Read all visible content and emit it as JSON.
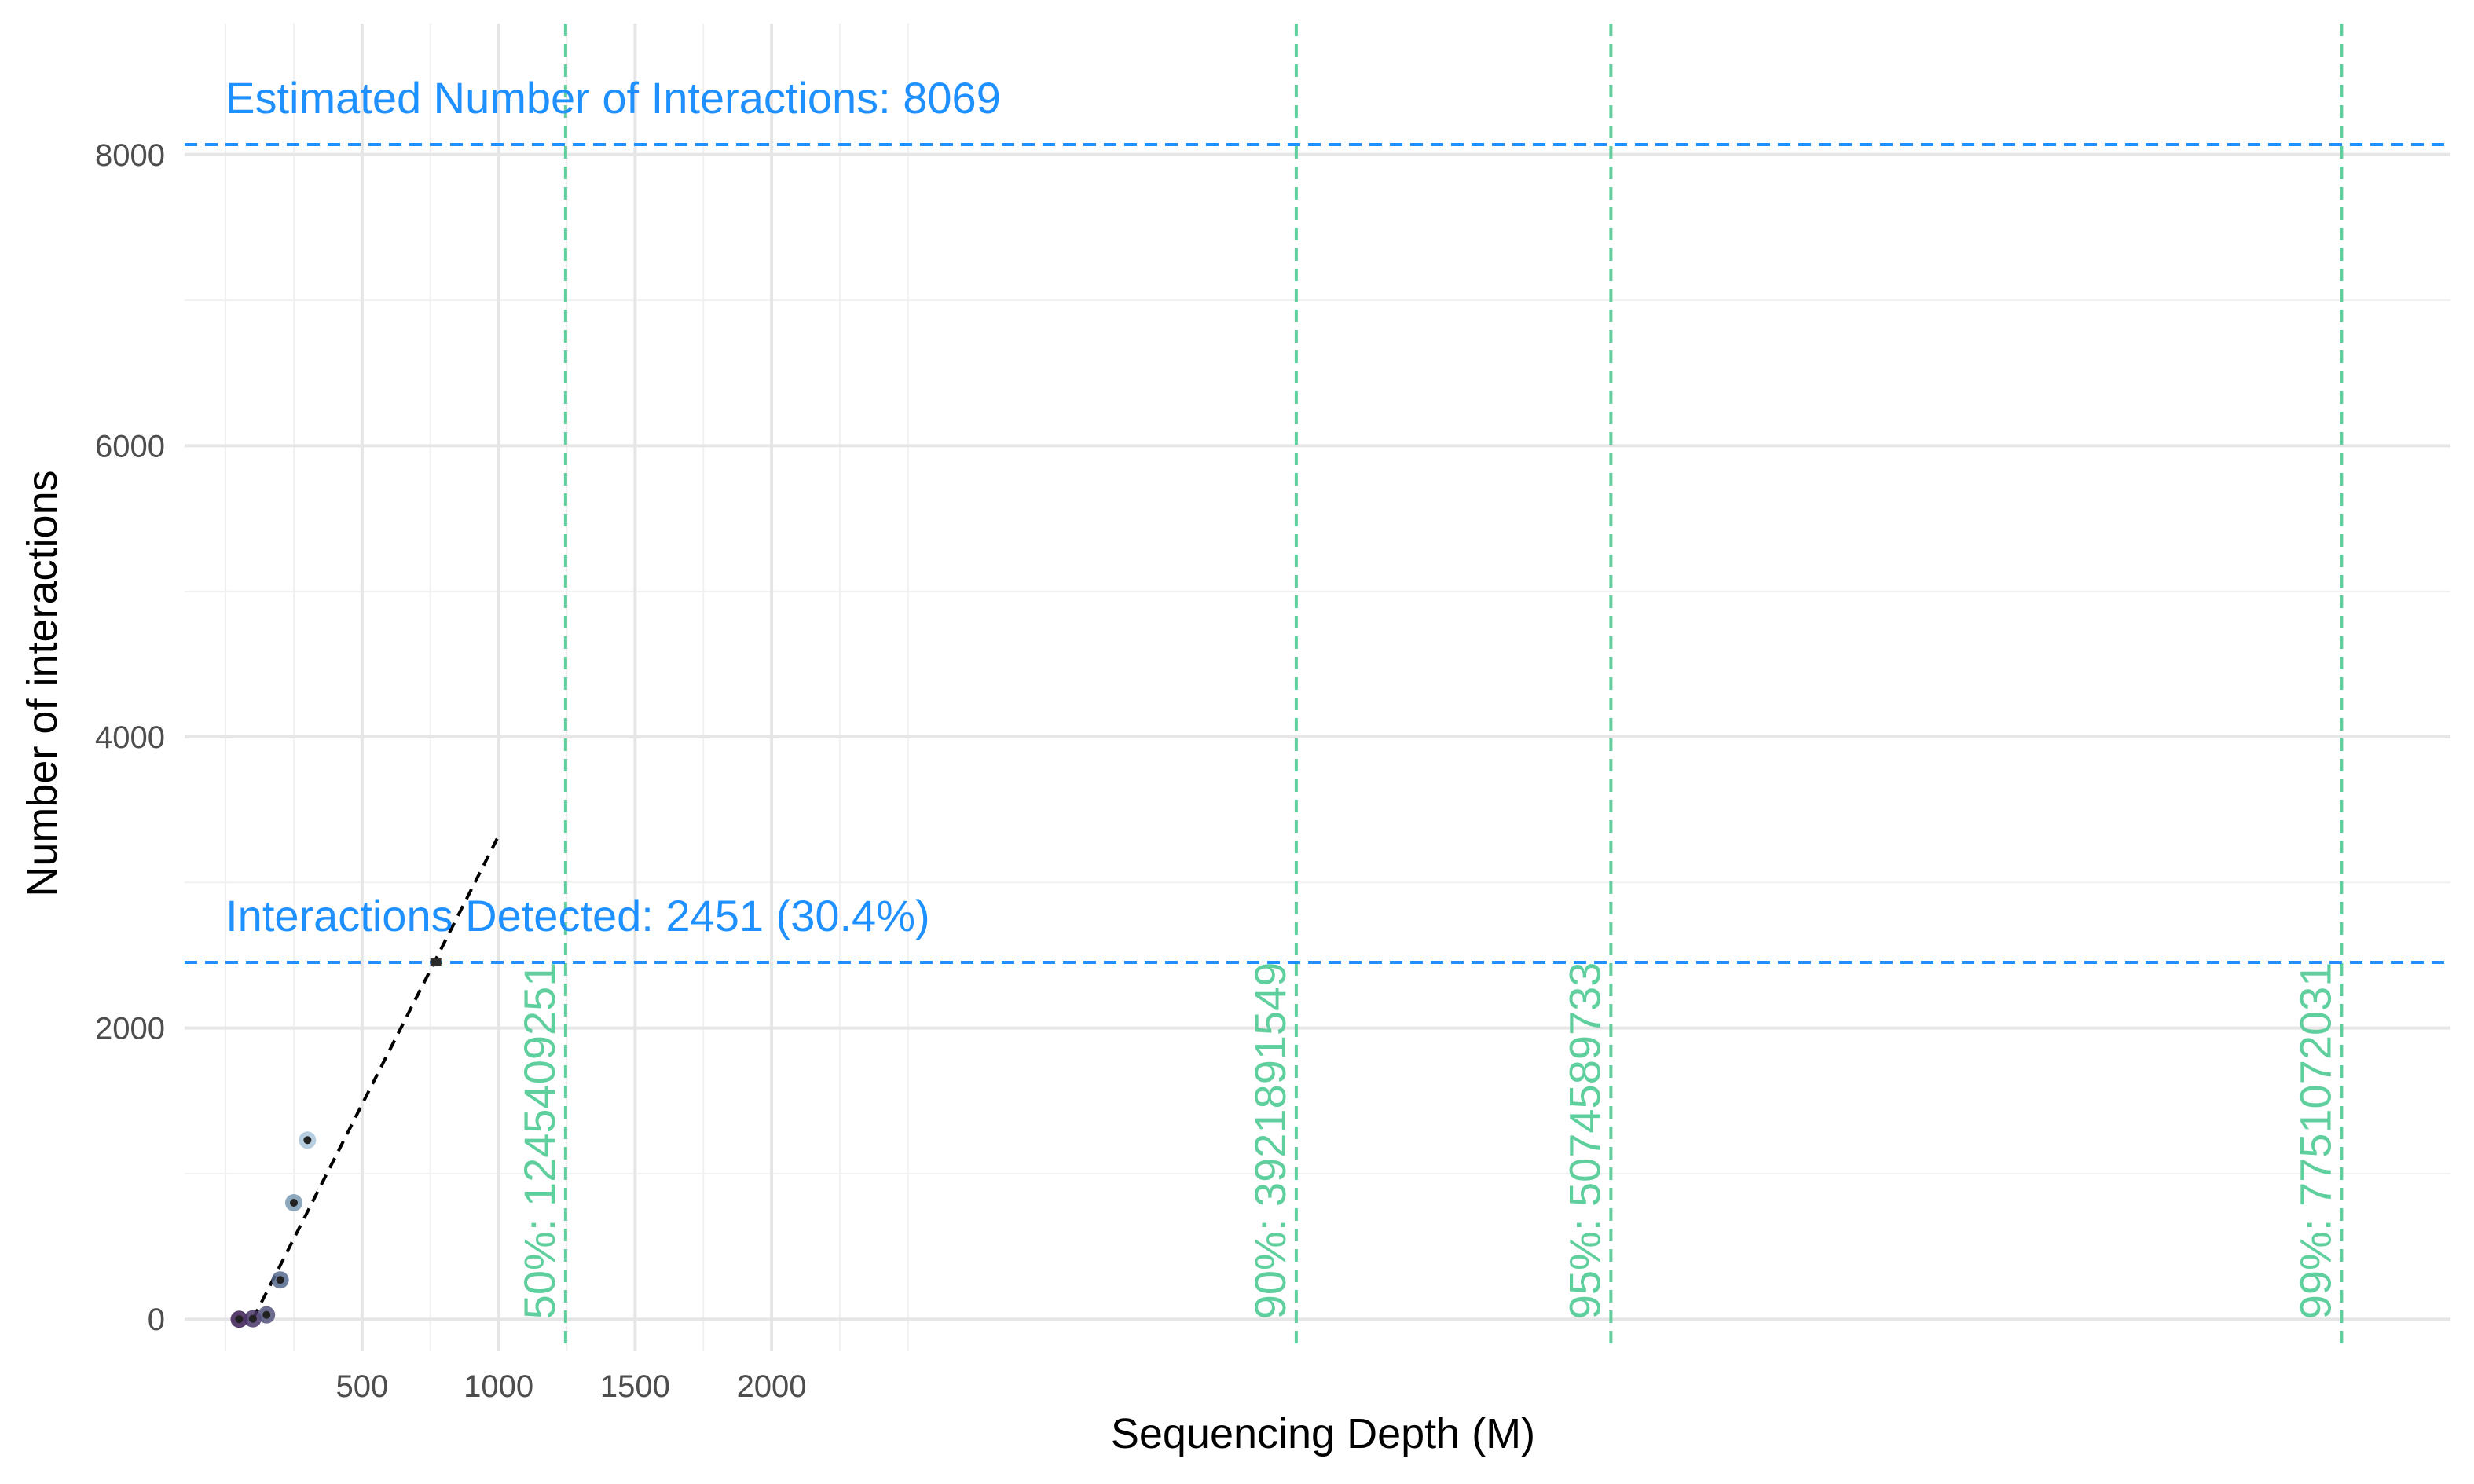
{
  "chart_data": {
    "type": "scatter",
    "xlabel": "Sequencing Depth (M)",
    "ylabel": "Number of interactions",
    "xlim": [
      -150,
      8150
    ],
    "ylim": [
      -220,
      8900
    ],
    "x_ticks": [
      500,
      1000,
      1500,
      2000
    ],
    "y_ticks": [
      0,
      2000,
      4000,
      6000,
      8000
    ],
    "x_minor_grid": [
      0,
      250,
      750,
      1250,
      1750,
      2250,
      2500
    ],
    "y_minor_grid": [
      1000,
      3000,
      5000,
      7000
    ],
    "grid": true,
    "points": [
      {
        "x": 50,
        "y": 0,
        "color": "#3b1d53"
      },
      {
        "x": 100,
        "y": 3,
        "color": "#4a3568"
      },
      {
        "x": 150,
        "y": 30,
        "color": "#52527e"
      },
      {
        "x": 200,
        "y": 270,
        "color": "#55688d"
      },
      {
        "x": 250,
        "y": 800,
        "color": "#7a9ab3"
      },
      {
        "x": 300,
        "y": 1230,
        "color": "#a9c6da"
      }
    ],
    "current_point": {
      "x": 770,
      "y": 2451
    },
    "fit_line": {
      "x": [
        100,
        1000
      ],
      "y": [
        0,
        3320
      ],
      "color": "#000000",
      "dash": true
    },
    "hlines": [
      {
        "y": 8069,
        "label": "Estimated Number of Interactions: 8069",
        "color": "#1e90ff"
      },
      {
        "y": 2451,
        "label": "Interactions Detected: 2451 (30.4%)",
        "color": "#1e90ff"
      }
    ],
    "vlines": [
      {
        "x": 1245.409251,
        "label": "50%: 1245409251",
        "color": "#5fcf9e"
      },
      {
        "x": 3921.891549,
        "label": "90%: 3921891549",
        "color": "#5fcf9e"
      },
      {
        "x": 5074.589733,
        "label": "95%: 5074589733",
        "color": "#5fcf9e"
      },
      {
        "x": 7751.072031,
        "label": "99%: 7751072031",
        "color": "#5fcf9e"
      }
    ]
  }
}
